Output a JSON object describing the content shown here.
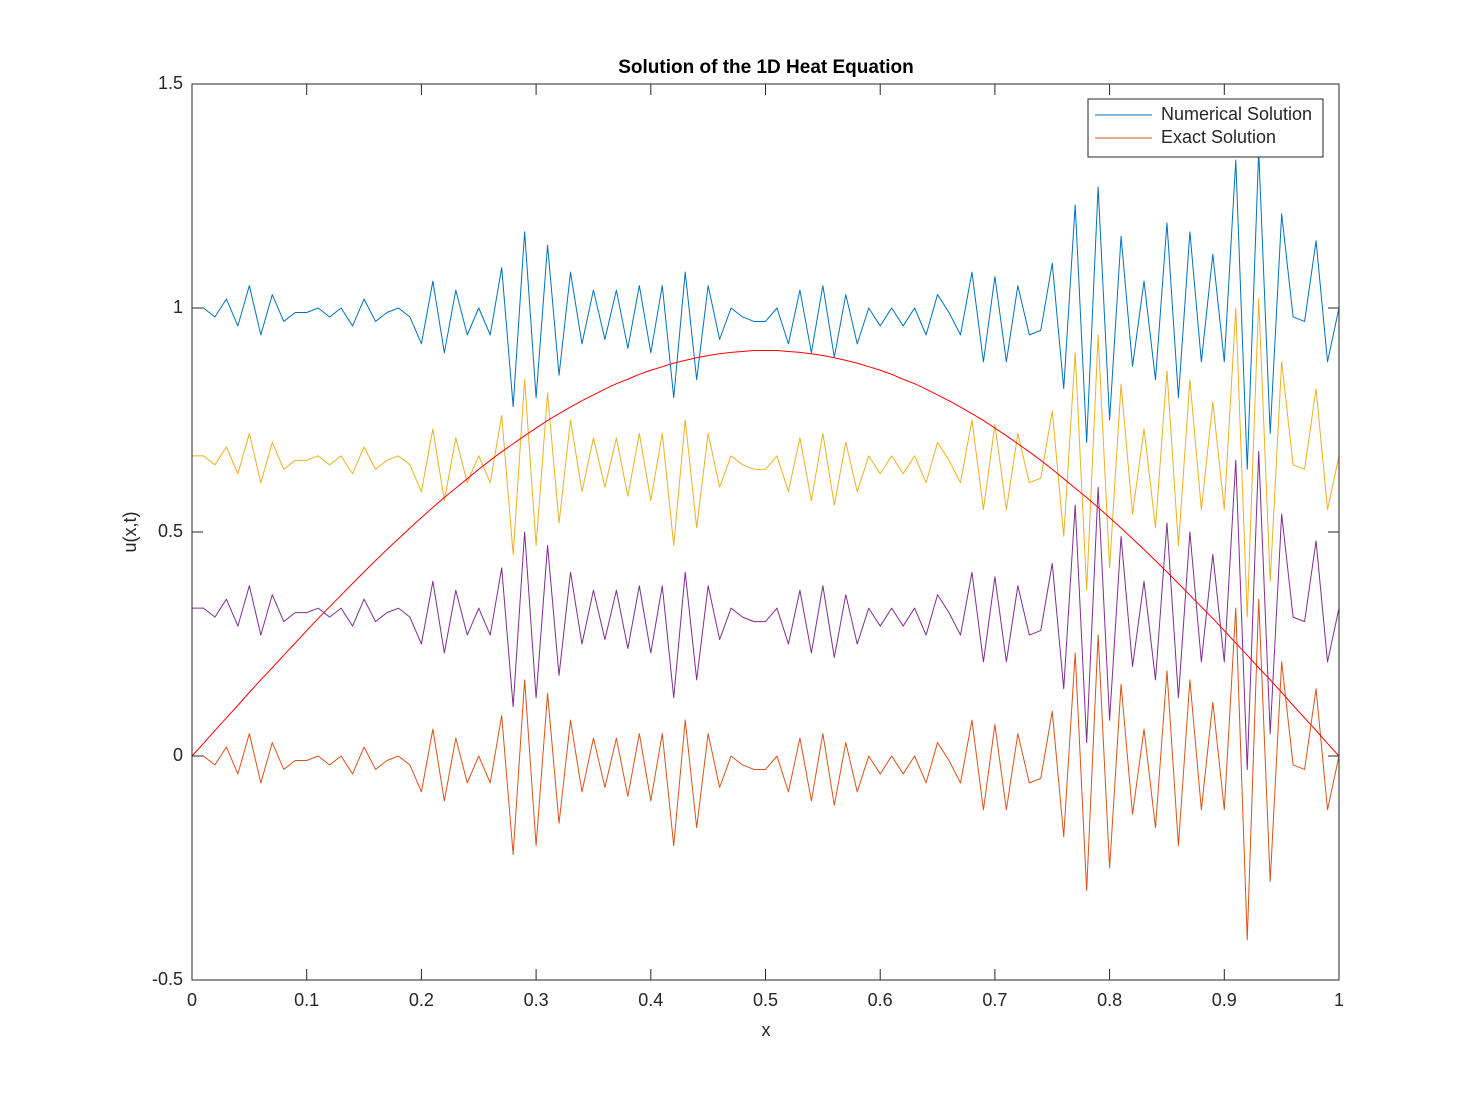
{
  "chart_data": {
    "type": "line",
    "title": "Solution of the 1D Heat Equation",
    "x_label": "x",
    "y_label": "u(x,t)",
    "legend_position": "upper right",
    "xlim": [
      0,
      1
    ],
    "ylim": [
      -0.5,
      1.5
    ],
    "xticks": [
      0,
      0.1,
      0.2,
      0.3,
      0.4,
      0.5,
      0.6,
      0.7,
      0.8,
      0.9,
      1
    ],
    "yticks": [
      -0.5,
      0,
      0.5,
      1,
      1.5
    ],
    "x": [
      0,
      0.01,
      0.02,
      0.03,
      0.04,
      0.05,
      0.06,
      0.07,
      0.08,
      0.09,
      0.1,
      0.11,
      0.12,
      0.13,
      0.14,
      0.15,
      0.16,
      0.17,
      0.18,
      0.19,
      0.2,
      0.21,
      0.22,
      0.23,
      0.24,
      0.25,
      0.26,
      0.27,
      0.28,
      0.29,
      0.3,
      0.31,
      0.32,
      0.33,
      0.34,
      0.35,
      0.36,
      0.37,
      0.38,
      0.39,
      0.4,
      0.41,
      0.42,
      0.43,
      0.44,
      0.45,
      0.46,
      0.47,
      0.48,
      0.49,
      0.5,
      0.51,
      0.52,
      0.53,
      0.54,
      0.55,
      0.56,
      0.57,
      0.58,
      0.59,
      0.6,
      0.61,
      0.62,
      0.63,
      0.64,
      0.65,
      0.66,
      0.67,
      0.68,
      0.69,
      0.7,
      0.71,
      0.72,
      0.73,
      0.74,
      0.75,
      0.76,
      0.77,
      0.78,
      0.79,
      0.8,
      0.81,
      0.82,
      0.83,
      0.84,
      0.85,
      0.86,
      0.87,
      0.88,
      0.89,
      0.9,
      0.91,
      0.92,
      0.93,
      0.94,
      0.95,
      0.96,
      0.97,
      0.98,
      0.99,
      1
    ],
    "series": [
      {
        "name": "Numerical Solution",
        "color": "#0072bd",
        "values": [
          1.0,
          1.0,
          0.98,
          1.02,
          0.96,
          1.05,
          0.94,
          1.03,
          0.97,
          0.99,
          0.99,
          1.0,
          0.98,
          1.0,
          0.96,
          1.02,
          0.97,
          0.99,
          1.0,
          0.98,
          0.92,
          1.06,
          0.9,
          1.04,
          0.94,
          1.0,
          0.94,
          1.09,
          0.78,
          1.17,
          0.8,
          1.14,
          0.85,
          1.08,
          0.92,
          1.04,
          0.93,
          1.04,
          0.91,
          1.05,
          0.9,
          1.05,
          0.8,
          1.08,
          0.84,
          1.05,
          0.93,
          1.0,
          0.98,
          0.97,
          0.97,
          1.0,
          0.92,
          1.04,
          0.9,
          1.05,
          0.89,
          1.03,
          0.92,
          1.0,
          0.96,
          1.0,
          0.96,
          1.0,
          0.94,
          1.03,
          0.99,
          0.94,
          1.08,
          0.88,
          1.07,
          0.88,
          1.05,
          0.94,
          0.95,
          1.1,
          0.82,
          1.23,
          0.7,
          1.27,
          0.75,
          1.16,
          0.87,
          1.06,
          0.84,
          1.19,
          0.8,
          1.17,
          0.88,
          1.12,
          0.88,
          1.33,
          0.64,
          1.35,
          0.72,
          1.21,
          0.98,
          0.97,
          1.15,
          0.88,
          1.0
        ]
      },
      {
        "name": "Exact Solution",
        "color": "#d95319",
        "values": [
          0,
          0,
          -0.02,
          0.02,
          -0.04,
          0.05,
          -0.06,
          0.03,
          -0.03,
          -0.01,
          -0.01,
          0,
          -0.02,
          0,
          -0.04,
          0.02,
          -0.03,
          -0.01,
          0,
          -0.02,
          -0.08,
          0.06,
          -0.1,
          0.04,
          -0.06,
          0,
          -0.06,
          0.09,
          -0.22,
          0.17,
          -0.2,
          0.14,
          -0.15,
          0.08,
          -0.08,
          0.04,
          -0.07,
          0.04,
          -0.09,
          0.05,
          -0.1,
          0.05,
          -0.2,
          0.08,
          -0.16,
          0.05,
          -0.07,
          0,
          -0.02,
          -0.03,
          -0.03,
          0,
          -0.08,
          0.04,
          -0.1,
          0.05,
          -0.11,
          0.03,
          -0.08,
          0,
          -0.04,
          0,
          -0.04,
          0,
          -0.06,
          0.03,
          -0.01,
          -0.06,
          0.08,
          -0.12,
          0.07,
          -0.12,
          0.05,
          -0.06,
          -0.05,
          0.1,
          -0.18,
          0.23,
          -0.3,
          0.27,
          -0.25,
          0.16,
          -0.13,
          0.06,
          -0.16,
          0.19,
          -0.2,
          0.17,
          -0.12,
          0.12,
          -0.12,
          0.33,
          -0.41,
          0.35,
          -0.28,
          0.21,
          -0.02,
          -0.03,
          0.15,
          -0.12,
          0
        ]
      },
      {
        "color": "#edb120",
        "values": [
          0.67,
          0.67,
          0.65,
          0.69,
          0.63,
          0.72,
          0.61,
          0.7,
          0.64,
          0.66,
          0.66,
          0.67,
          0.65,
          0.67,
          0.63,
          0.69,
          0.64,
          0.66,
          0.67,
          0.65,
          0.59,
          0.73,
          0.57,
          0.71,
          0.61,
          0.67,
          0.61,
          0.76,
          0.45,
          0.84,
          0.47,
          0.81,
          0.52,
          0.75,
          0.59,
          0.71,
          0.6,
          0.71,
          0.58,
          0.72,
          0.57,
          0.72,
          0.47,
          0.75,
          0.51,
          0.72,
          0.6,
          0.67,
          0.65,
          0.64,
          0.64,
          0.67,
          0.59,
          0.71,
          0.57,
          0.72,
          0.56,
          0.7,
          0.59,
          0.67,
          0.63,
          0.67,
          0.63,
          0.67,
          0.61,
          0.7,
          0.66,
          0.61,
          0.75,
          0.55,
          0.74,
          0.55,
          0.72,
          0.61,
          0.62,
          0.77,
          0.49,
          0.9,
          0.37,
          0.94,
          0.42,
          0.83,
          0.54,
          0.73,
          0.51,
          0.86,
          0.47,
          0.84,
          0.55,
          0.79,
          0.55,
          1.0,
          0.31,
          1.02,
          0.39,
          0.88,
          0.65,
          0.64,
          0.82,
          0.55,
          0.67
        ]
      },
      {
        "color": "#7e2f8e",
        "values": [
          0.33,
          0.33,
          0.31,
          0.35,
          0.29,
          0.38,
          0.27,
          0.36,
          0.3,
          0.32,
          0.32,
          0.33,
          0.31,
          0.33,
          0.29,
          0.35,
          0.3,
          0.32,
          0.33,
          0.31,
          0.25,
          0.39,
          0.23,
          0.37,
          0.27,
          0.33,
          0.27,
          0.42,
          0.11,
          0.5,
          0.13,
          0.47,
          0.18,
          0.41,
          0.25,
          0.37,
          0.26,
          0.37,
          0.24,
          0.38,
          0.23,
          0.38,
          0.13,
          0.41,
          0.17,
          0.38,
          0.26,
          0.33,
          0.31,
          0.3,
          0.3,
          0.33,
          0.25,
          0.37,
          0.23,
          0.38,
          0.22,
          0.36,
          0.25,
          0.33,
          0.29,
          0.33,
          0.29,
          0.33,
          0.27,
          0.36,
          0.32,
          0.27,
          0.41,
          0.21,
          0.4,
          0.21,
          0.38,
          0.27,
          0.28,
          0.43,
          0.15,
          0.56,
          0.03,
          0.6,
          0.08,
          0.49,
          0.2,
          0.39,
          0.17,
          0.52,
          0.13,
          0.5,
          0.21,
          0.45,
          0.21,
          0.66,
          -0.03,
          0.68,
          0.05,
          0.54,
          0.31,
          0.3,
          0.48,
          0.21,
          0.33
        ]
      },
      {
        "color": "#ff0000",
        "values": [
          0,
          0.028,
          0.057,
          0.085,
          0.113,
          0.142,
          0.17,
          0.197,
          0.225,
          0.252,
          0.28,
          0.307,
          0.333,
          0.359,
          0.385,
          0.411,
          0.436,
          0.461,
          0.485,
          0.509,
          0.532,
          0.555,
          0.577,
          0.598,
          0.619,
          0.64,
          0.66,
          0.679,
          0.697,
          0.715,
          0.732,
          0.749,
          0.764,
          0.779,
          0.793,
          0.806,
          0.819,
          0.831,
          0.841,
          0.852,
          0.861,
          0.869,
          0.877,
          0.883,
          0.889,
          0.894,
          0.898,
          0.901,
          0.903,
          0.905,
          0.905,
          0.905,
          0.903,
          0.901,
          0.898,
          0.894,
          0.889,
          0.883,
          0.877,
          0.869,
          0.861,
          0.852,
          0.841,
          0.831,
          0.819,
          0.806,
          0.793,
          0.779,
          0.764,
          0.749,
          0.732,
          0.715,
          0.697,
          0.679,
          0.66,
          0.64,
          0.619,
          0.598,
          0.577,
          0.555,
          0.532,
          0.509,
          0.485,
          0.461,
          0.436,
          0.411,
          0.385,
          0.359,
          0.333,
          0.307,
          0.28,
          0.252,
          0.225,
          0.197,
          0.17,
          0.142,
          0.113,
          0.085,
          0.057,
          0.028,
          0
        ]
      }
    ]
  }
}
